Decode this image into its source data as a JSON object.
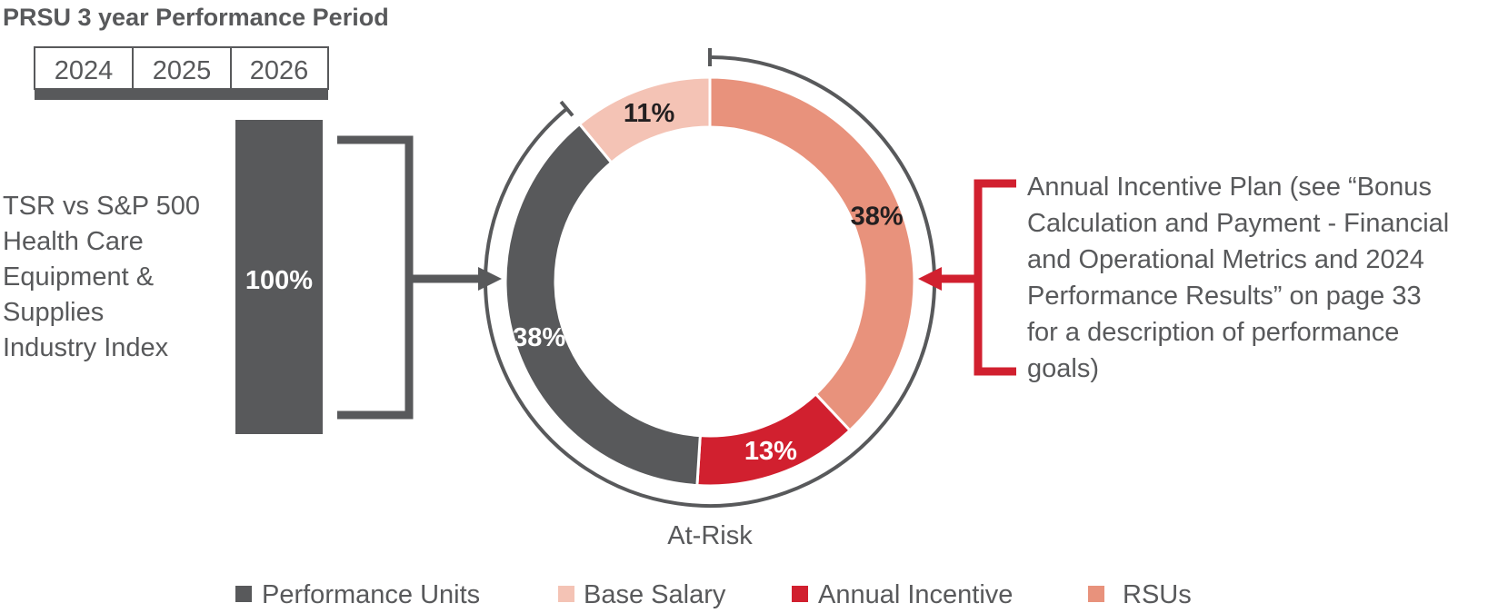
{
  "chart_data": {
    "type": "pie",
    "title": "PRSU 3 year Performance Period",
    "years": [
      "2024",
      "2025",
      "2026"
    ],
    "prsu_bar": {
      "label_lines": [
        "TSR vs S&P 500",
        "Health Care",
        "Equipment &",
        "Supplies",
        "Industry Index"
      ],
      "value_label": "100%",
      "value": 100
    },
    "slices": [
      {
        "name": "RSUs",
        "value": 38,
        "label": "38%",
        "color": "#e8927c"
      },
      {
        "name": "Annual Incentive",
        "value": 13,
        "label": "13%",
        "color": "#d1202f"
      },
      {
        "name": "Performance Units",
        "value": 38,
        "label": "38%",
        "color": "#58595b"
      },
      {
        "name": "Base Salary",
        "value": 11,
        "label": "11%",
        "color": "#f4c3b5"
      }
    ],
    "at_risk_label": "At-Risk",
    "aip_note_lines": [
      "Annual Incentive Plan (see “Bonus",
      "Calculation and Payment - Financial",
      "and Operational Metrics and 2024",
      "Performance Results” on page 33",
      "for a description of performance",
      "goals)"
    ],
    "legend": [
      {
        "name": "Performance Units",
        "color": "#58595b"
      },
      {
        "name": "Base Salary",
        "color": "#f4c3b5"
      },
      {
        "name": "Annual Incentive",
        "color": "#d1202f"
      },
      {
        "name": "RSUs",
        "color": "#e8927c"
      }
    ],
    "colors": {
      "dark": "#58595b",
      "red": "#d1202f",
      "white": "#ffffff",
      "text": "#58595b"
    }
  }
}
